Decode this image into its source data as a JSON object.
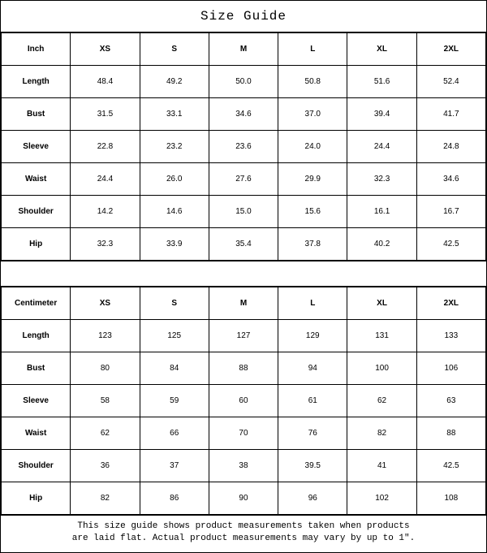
{
  "title": "Size Guide",
  "sizes": [
    "XS",
    "S",
    "M",
    "L",
    "XL",
    "2XL"
  ],
  "inch": {
    "unit_label": "Inch",
    "rows": [
      {
        "label": "Length",
        "values": [
          "48.4",
          "49.2",
          "50.0",
          "50.8",
          "51.6",
          "52.4"
        ]
      },
      {
        "label": "Bust",
        "values": [
          "31.5",
          "33.1",
          "34.6",
          "37.0",
          "39.4",
          "41.7"
        ]
      },
      {
        "label": "Sleeve",
        "values": [
          "22.8",
          "23.2",
          "23.6",
          "24.0",
          "24.4",
          "24.8"
        ]
      },
      {
        "label": "Waist",
        "values": [
          "24.4",
          "26.0",
          "27.6",
          "29.9",
          "32.3",
          "34.6"
        ]
      },
      {
        "label": "Shoulder",
        "values": [
          "14.2",
          "14.6",
          "15.0",
          "15.6",
          "16.1",
          "16.7"
        ]
      },
      {
        "label": "Hip",
        "values": [
          "32.3",
          "33.9",
          "35.4",
          "37.8",
          "40.2",
          "42.5"
        ]
      }
    ]
  },
  "cm": {
    "unit_label": "Centimeter",
    "rows": [
      {
        "label": "Length",
        "values": [
          "123",
          "125",
          "127",
          "129",
          "131",
          "133"
        ]
      },
      {
        "label": "Bust",
        "values": [
          "80",
          "84",
          "88",
          "94",
          "100",
          "106"
        ]
      },
      {
        "label": "Sleeve",
        "values": [
          "58",
          "59",
          "60",
          "61",
          "62",
          "63"
        ]
      },
      {
        "label": "Waist",
        "values": [
          "62",
          "66",
          "70",
          "76",
          "82",
          "88"
        ]
      },
      {
        "label": "Shoulder",
        "values": [
          "36",
          "37",
          "38",
          "39.5",
          "41",
          "42.5"
        ]
      },
      {
        "label": "Hip",
        "values": [
          "82",
          "86",
          "90",
          "96",
          "102",
          "108"
        ]
      }
    ]
  },
  "footer_line1": "This size guide shows product measurements taken when products",
  "footer_line2": "are laid flat. Actual product measurements may vary by up to 1\"."
}
